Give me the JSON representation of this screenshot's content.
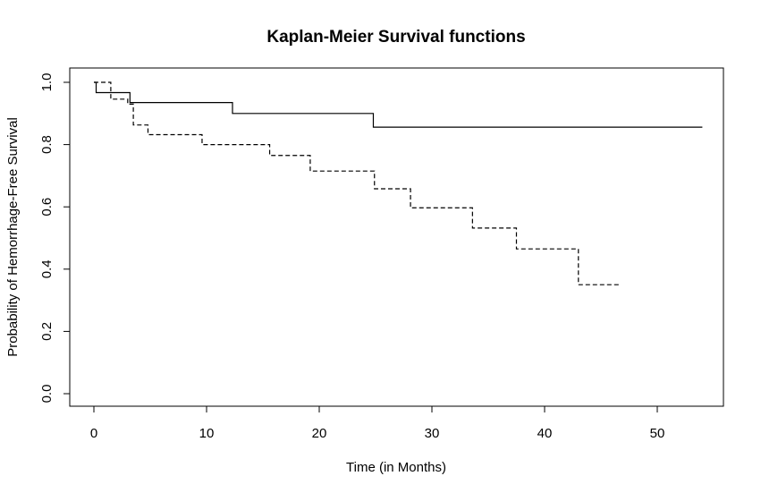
{
  "chart_data": {
    "type": "line",
    "title": "Kaplan-Meier Survival functions",
    "xlabel": "Time (in Months)",
    "ylabel": "Probability of Hemorrhage-Free Survival",
    "xlim": [
      0,
      54
    ],
    "ylim": [
      0,
      1
    ],
    "x_ticks": [
      "0",
      "10",
      "20",
      "30",
      "40",
      "50"
    ],
    "y_ticks": [
      "0.0",
      "0.2",
      "0.4",
      "0.6",
      "0.8",
      "1.0"
    ],
    "grid": false,
    "legend": "none",
    "series": [
      {
        "style": "solid",
        "step": true,
        "x": [
          0,
          0.2,
          3.2,
          12.3,
          24.8,
          54.0
        ],
        "y": [
          1.0,
          0.967,
          0.935,
          0.9,
          0.856,
          0.856
        ]
      },
      {
        "style": "dashed",
        "step": true,
        "x": [
          0,
          1.5,
          3.0,
          3.5,
          4.8,
          9.6,
          15.6,
          19.2,
          24.9,
          28.1,
          33.6,
          37.5,
          43.0,
          46.8
        ],
        "y": [
          1.0,
          0.946,
          0.93,
          0.863,
          0.832,
          0.8,
          0.765,
          0.715,
          0.658,
          0.597,
          0.532,
          0.465,
          0.35,
          0.35
        ]
      }
    ]
  }
}
